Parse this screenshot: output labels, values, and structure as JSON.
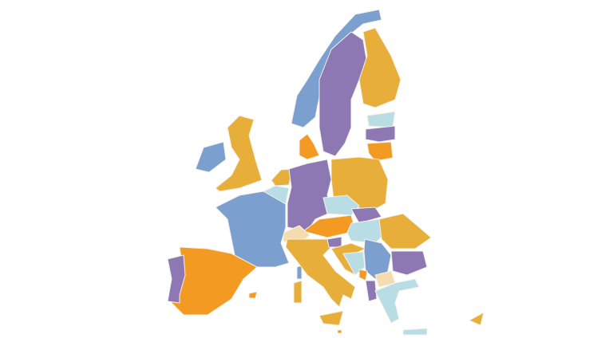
{
  "map": {
    "palette": {
      "blue": "#7b9fcf",
      "purple": "#8e78b4",
      "gold": "#e8ae3a",
      "orange": "#f39a23",
      "light_blue": "#b9dde4",
      "beige": "#f5dcae"
    },
    "regions": [
      {
        "id": "norway",
        "color": "blue"
      },
      {
        "id": "sweden",
        "color": "purple"
      },
      {
        "id": "finland",
        "color": "gold"
      },
      {
        "id": "estonia",
        "color": "light_blue"
      },
      {
        "id": "latvia",
        "color": "purple"
      },
      {
        "id": "lithuania",
        "color": "orange"
      },
      {
        "id": "ireland",
        "color": "blue"
      },
      {
        "id": "united-kingdom",
        "color": "gold"
      },
      {
        "id": "denmark",
        "color": "orange"
      },
      {
        "id": "netherlands",
        "color": "gold"
      },
      {
        "id": "belgium",
        "color": "light_blue"
      },
      {
        "id": "germany",
        "color": "purple"
      },
      {
        "id": "poland",
        "color": "gold"
      },
      {
        "id": "czechia",
        "color": "light_blue"
      },
      {
        "id": "slovakia",
        "color": "purple"
      },
      {
        "id": "austria",
        "color": "orange"
      },
      {
        "id": "switzerland",
        "color": "beige"
      },
      {
        "id": "hungary",
        "color": "light_blue"
      },
      {
        "id": "romania",
        "color": "gold"
      },
      {
        "id": "france",
        "color": "blue"
      },
      {
        "id": "corsica",
        "color": "blue"
      },
      {
        "id": "spain",
        "color": "orange"
      },
      {
        "id": "balearic-islands",
        "color": "orange"
      },
      {
        "id": "portugal",
        "color": "purple"
      },
      {
        "id": "italy",
        "color": "gold"
      },
      {
        "id": "sicily",
        "color": "gold"
      },
      {
        "id": "sardinia",
        "color": "gold"
      },
      {
        "id": "slovenia",
        "color": "purple"
      },
      {
        "id": "croatia",
        "color": "gold"
      },
      {
        "id": "bosnia",
        "color": "light_blue"
      },
      {
        "id": "serbia",
        "color": "blue"
      },
      {
        "id": "montenegro",
        "color": "orange"
      },
      {
        "id": "north-macedonia",
        "color": "beige"
      },
      {
        "id": "albania",
        "color": "purple"
      },
      {
        "id": "bulgaria",
        "color": "purple"
      },
      {
        "id": "greece",
        "color": "light_blue"
      },
      {
        "id": "crete",
        "color": "light_blue"
      },
      {
        "id": "malta",
        "color": "orange"
      },
      {
        "id": "cyprus",
        "color": "gold"
      }
    ]
  }
}
